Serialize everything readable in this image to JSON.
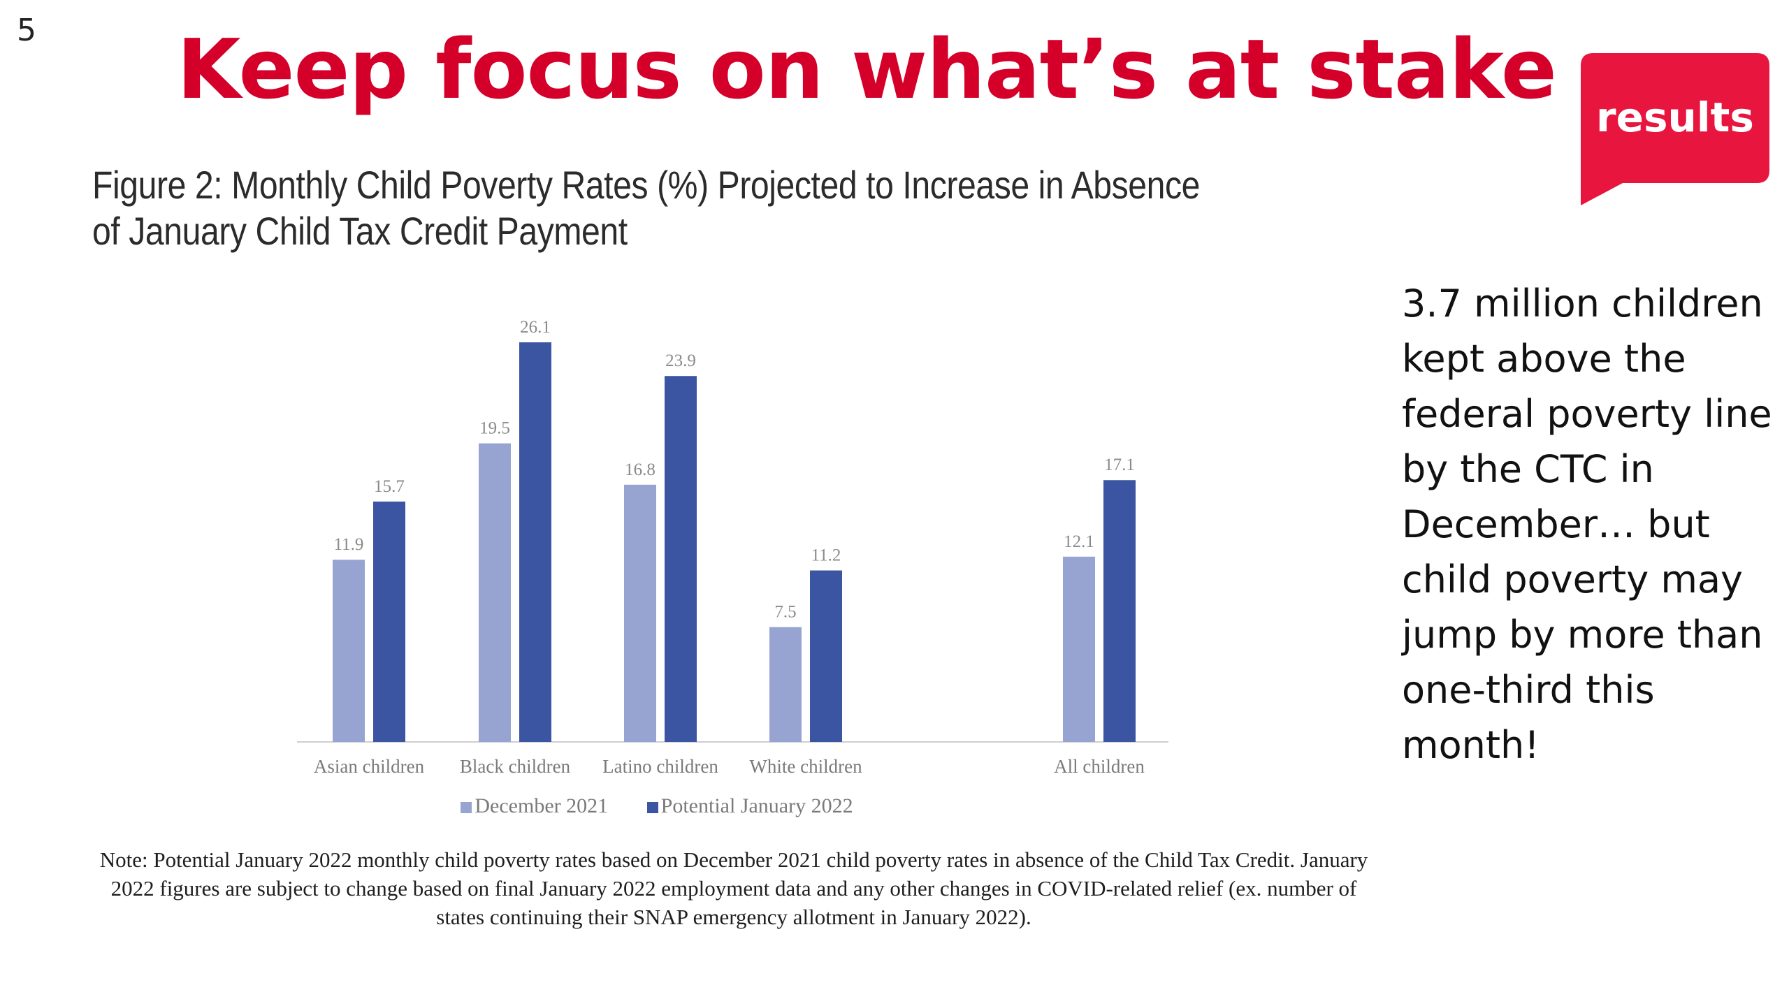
{
  "slide": {
    "number": "5",
    "title": "Keep focus on what’s at stake",
    "logo_text": "results",
    "side_text": "3.7 million children kept above the federal poverty line by the CTC in December… but child poverty may jump by more than one-third this month!",
    "figure_title": "Figure 2: Monthly Child Poverty Rates (%) Projected to Increase in Absence of January Child Tax Credit Payment",
    "note": "Note: Potential January 2022 monthly child poverty rates based on December 2021 child poverty rates in absence of the Child Tax Credit. January 2022 figures are subject to change based on final January 2022 employment data and any other changes in COVID-related relief (ex. number of states continuing their SNAP emergency allotment in January 2022)."
  },
  "colors": {
    "title_red": "#d4002a",
    "logo_red": "#e8153f",
    "series_light": "#97a3d1",
    "series_dark": "#3c55a3"
  },
  "chart_data": {
    "type": "bar",
    "title": "Figure 2: Monthly Child Poverty Rates (%) Projected to Increase in Absence of January Child Tax Credit Payment",
    "categories": [
      "Asian children",
      "Black children",
      "Latino children",
      "White children",
      "All children"
    ],
    "series": [
      {
        "name": "December 2021",
        "values": [
          11.9,
          19.5,
          16.8,
          7.5,
          12.1
        ],
        "color": "#97a3d1"
      },
      {
        "name": "Potential January 2022",
        "values": [
          15.7,
          26.1,
          23.9,
          11.2,
          17.1
        ],
        "color": "#3c55a3"
      }
    ],
    "data_labels": true,
    "ylim": [
      0,
      26.1
    ],
    "grid": false,
    "legend_position": "bottom"
  }
}
